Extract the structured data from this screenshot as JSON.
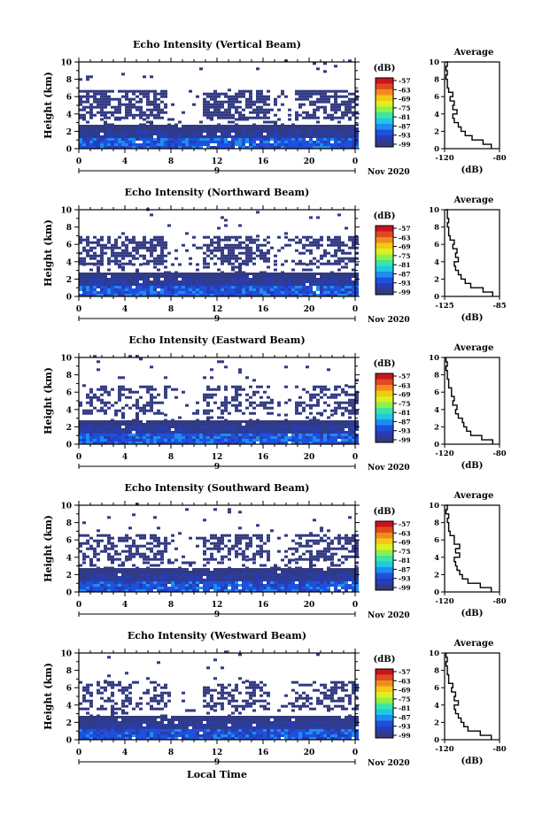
{
  "figure": {
    "x_axis_title": "Local Time",
    "colorbar_unit": "(dB)",
    "colorbar_ticks": [
      "-57",
      "-63",
      "-69",
      "-75",
      "-81",
      "-87",
      "-93",
      "-99"
    ],
    "colorbar_colors": [
      "#c8141e",
      "#e04a1e",
      "#f08c1e",
      "#f4c814",
      "#dcf01e",
      "#8cf050",
      "#3ce6a0",
      "#1ec8e6",
      "#1e8cf0",
      "#1e50dc",
      "#283cb4",
      "#323a82"
    ],
    "date_label": "Nov 2020",
    "day_marker": "9"
  },
  "chart_data": [
    {
      "type": "heatmap",
      "title": "Echo Intensity (Vertical Beam)",
      "ylabel": "Height (km)",
      "x_ticks": [
        "0",
        "4",
        "8",
        "12",
        "16",
        "20",
        "0"
      ],
      "xlim": [
        0,
        24
      ],
      "y_ticks": [
        "0",
        "2",
        "4",
        "6",
        "8",
        "10"
      ],
      "ylim": [
        0,
        10
      ],
      "z_range_db": [
        -99,
        -57
      ],
      "layers_km": [
        {
          "from_km": 0.0,
          "to_km": 2.6,
          "coverage": 0.98
        },
        {
          "from_km": 2.6,
          "to_km": 3.4,
          "coverage": 0.18
        },
        {
          "from_km": 3.4,
          "to_km": 6.6,
          "coverage": 0.66
        },
        {
          "from_km": 6.6,
          "to_km": 10.0,
          "coverage": 0.02
        }
      ],
      "average_profile": {
        "title": "Average",
        "xlabel": "(dB)",
        "x_ticks": [
          "-120",
          "-80"
        ],
        "xlim": [
          -120,
          -80
        ],
        "y_ticks": [
          "0",
          "2",
          "4",
          "6",
          "8",
          "10"
        ],
        "ylim": [
          0,
          10
        ],
        "height_km": [
          0,
          0.5,
          1,
          1.5,
          2,
          2.5,
          3,
          3.5,
          4,
          4.5,
          5,
          5.5,
          6,
          6.5,
          7,
          7.5,
          8,
          8.5,
          9,
          9.5,
          10
        ],
        "db": [
          -86,
          -92,
          -100,
          -105,
          -108,
          -110,
          -113,
          -114,
          -111,
          -114,
          -113,
          -116,
          -114,
          -117,
          -118,
          -118,
          -119,
          -118,
          -119,
          -118,
          -119
        ]
      }
    },
    {
      "type": "heatmap",
      "title": "Echo Intensity (Northward Beam)",
      "ylabel": "Height (km)",
      "x_ticks": [
        "0",
        "4",
        "8",
        "12",
        "16",
        "20",
        "0"
      ],
      "xlim": [
        0,
        24
      ],
      "y_ticks": [
        "0",
        "2",
        "4",
        "6",
        "8",
        "10"
      ],
      "ylim": [
        0,
        10
      ],
      "z_range_db": [
        -99,
        -57
      ],
      "layers_km": [
        {
          "from_km": 0.0,
          "to_km": 2.6,
          "coverage": 0.98
        },
        {
          "from_km": 2.6,
          "to_km": 3.6,
          "coverage": 0.2
        },
        {
          "from_km": 3.6,
          "to_km": 6.8,
          "coverage": 0.6
        },
        {
          "from_km": 6.8,
          "to_km": 10.0,
          "coverage": 0.03
        }
      ],
      "average_profile": {
        "title": "Average",
        "xlabel": "(dB)",
        "x_ticks": [
          "-125",
          "-85"
        ],
        "xlim": [
          -125,
          -85
        ],
        "y_ticks": [
          "0",
          "2",
          "4",
          "6",
          "8",
          "10"
        ],
        "ylim": [
          0,
          10
        ],
        "height_km": [
          0,
          0.5,
          1,
          1.5,
          2,
          2.5,
          3,
          3.5,
          4,
          4.5,
          5,
          5.5,
          6,
          6.5,
          7,
          7.5,
          8,
          8.5,
          9,
          9.5,
          10
        ],
        "db": [
          -90,
          -97,
          -106,
          -110,
          -113,
          -115,
          -117,
          -118,
          -115,
          -117,
          -116,
          -119,
          -118,
          -121,
          -122,
          -122,
          -123,
          -122,
          -123,
          -123,
          -124
        ]
      }
    },
    {
      "type": "heatmap",
      "title": "Echo Intensity (Eastward Beam)",
      "ylabel": "Height (km)",
      "x_ticks": [
        "0",
        "4",
        "8",
        "12",
        "16",
        "20",
        "0"
      ],
      "xlim": [
        0,
        24
      ],
      "y_ticks": [
        "0",
        "2",
        "4",
        "6",
        "8",
        "10"
      ],
      "ylim": [
        0,
        10
      ],
      "z_range_db": [
        -99,
        -57
      ],
      "layers_km": [
        {
          "from_km": 0.0,
          "to_km": 2.6,
          "coverage": 0.98
        },
        {
          "from_km": 2.6,
          "to_km": 3.4,
          "coverage": 0.15
        },
        {
          "from_km": 3.4,
          "to_km": 6.6,
          "coverage": 0.45
        },
        {
          "from_km": 6.6,
          "to_km": 10.0,
          "coverage": 0.03
        }
      ],
      "average_profile": {
        "title": "Average",
        "xlabel": "(dB)",
        "x_ticks": [
          "-120",
          "-80"
        ],
        "xlim": [
          -120,
          -80
        ],
        "y_ticks": [
          "0",
          "2",
          "4",
          "6",
          "8",
          "10"
        ],
        "ylim": [
          0,
          10
        ],
        "height_km": [
          0,
          0.5,
          1,
          1.5,
          2,
          2.5,
          3,
          3.5,
          4,
          4.5,
          5,
          5.5,
          6,
          6.5,
          7,
          7.5,
          8,
          8.5,
          9,
          9.5,
          10
        ],
        "db": [
          -85,
          -93,
          -101,
          -104,
          -106,
          -107,
          -110,
          -112,
          -111,
          -114,
          -113,
          -115,
          -115,
          -117,
          -117,
          -118,
          -118,
          -119,
          -118,
          -119,
          -119
        ]
      }
    },
    {
      "type": "heatmap",
      "title": "Echo Intensity (Southward Beam)",
      "ylabel": "Height (km)",
      "x_ticks": [
        "0",
        "4",
        "8",
        "12",
        "16",
        "20",
        "0"
      ],
      "xlim": [
        0,
        24
      ],
      "y_ticks": [
        "0",
        "2",
        "4",
        "6",
        "8",
        "10"
      ],
      "ylim": [
        0,
        10
      ],
      "z_range_db": [
        -99,
        -57
      ],
      "layers_km": [
        {
          "from_km": 0.0,
          "to_km": 2.6,
          "coverage": 0.97
        },
        {
          "from_km": 2.6,
          "to_km": 3.6,
          "coverage": 0.25
        },
        {
          "from_km": 3.6,
          "to_km": 6.6,
          "coverage": 0.55
        },
        {
          "from_km": 6.6,
          "to_km": 10.0,
          "coverage": 0.03
        }
      ],
      "average_profile": {
        "title": "Average",
        "xlabel": "(dB)",
        "x_ticks": [
          "-120",
          "-80"
        ],
        "xlim": [
          -120,
          -80
        ],
        "y_ticks": [
          "0",
          "2",
          "4",
          "6",
          "8",
          "10"
        ],
        "ylim": [
          0,
          10
        ],
        "height_km": [
          0,
          0.5,
          1,
          1.5,
          2,
          2.5,
          3,
          3.5,
          4,
          4.5,
          5,
          5.5,
          6,
          6.5,
          7,
          7.5,
          8,
          8.5,
          9,
          9.5,
          10
        ],
        "db": [
          -86,
          -94,
          -103,
          -107,
          -109,
          -111,
          -112,
          -113,
          -109,
          -112,
          -109,
          -113,
          -113,
          -116,
          -117,
          -117,
          -118,
          -117,
          -119,
          -118,
          -119
        ]
      }
    },
    {
      "type": "heatmap",
      "title": "Echo Intensity (Westward Beam)",
      "ylabel": "Height (km)",
      "x_ticks": [
        "0",
        "4",
        "8",
        "12",
        "16",
        "20",
        "0"
      ],
      "xlim": [
        0,
        24
      ],
      "y_ticks": [
        "0",
        "2",
        "4",
        "6",
        "8",
        "10"
      ],
      "ylim": [
        0,
        10
      ],
      "z_range_db": [
        -99,
        -57
      ],
      "layers_km": [
        {
          "from_km": 0.0,
          "to_km": 2.6,
          "coverage": 0.97
        },
        {
          "from_km": 2.6,
          "to_km": 3.4,
          "coverage": 0.15
        },
        {
          "from_km": 3.4,
          "to_km": 6.6,
          "coverage": 0.45
        },
        {
          "from_km": 6.6,
          "to_km": 10.0,
          "coverage": 0.02
        }
      ],
      "average_profile": {
        "title": "Average",
        "xlabel": "(dB)",
        "x_ticks": [
          "-120",
          "-80"
        ],
        "xlim": [
          -120,
          -80
        ],
        "y_ticks": [
          "0",
          "2",
          "4",
          "6",
          "8",
          "10"
        ],
        "ylim": [
          0,
          10
        ],
        "height_km": [
          0,
          0.5,
          1,
          1.5,
          2,
          2.5,
          3,
          3.5,
          4,
          4.5,
          5,
          5.5,
          6,
          6.5,
          7,
          7.5,
          8,
          8.5,
          9,
          9.5,
          10
        ],
        "db": [
          -86,
          -94,
          -103,
          -106,
          -108,
          -110,
          -112,
          -113,
          -110,
          -113,
          -112,
          -115,
          -114,
          -117,
          -117,
          -118,
          -118,
          -119,
          -118,
          -119,
          -119
        ]
      }
    }
  ]
}
